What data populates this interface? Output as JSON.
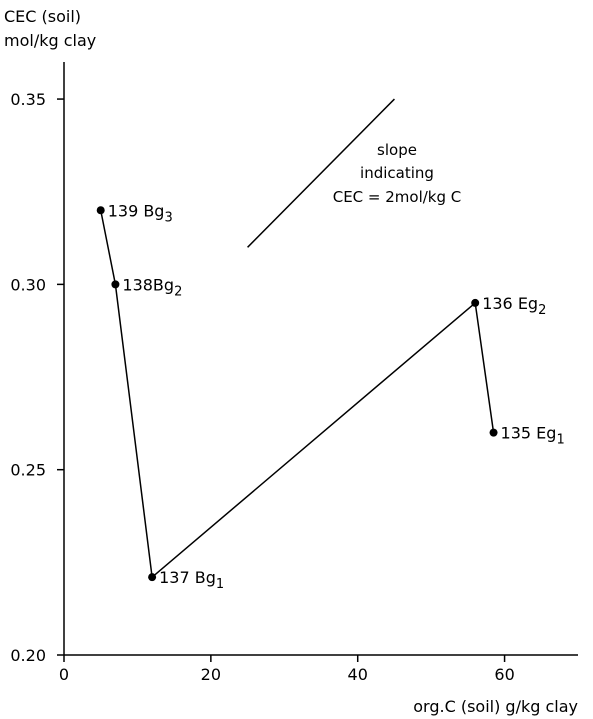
{
  "chart_data": {
    "type": "line",
    "ylabel_line1": "CEC (soil)",
    "ylabel_line2": "mol/kg clay",
    "xlabel": "org.C (soil) g/kg clay",
    "xlim": [
      0,
      70
    ],
    "ylim": [
      0.2,
      0.36
    ],
    "x_ticks": [
      0,
      20,
      40,
      60
    ],
    "x_tick_labels": [
      "0",
      "20",
      "40",
      "60"
    ],
    "y_ticks": [
      0.2,
      0.25,
      0.3,
      0.35
    ],
    "y_tick_labels": [
      "0.20",
      "0.25",
      "0.30",
      "0.35"
    ],
    "grid": false,
    "series": [
      {
        "points": [
          {
            "x": 5,
            "y": 0.32,
            "label": "139 Bg",
            "sub": "3"
          },
          {
            "x": 7,
            "y": 0.3,
            "label": "138Bg",
            "sub": "2"
          },
          {
            "x": 12,
            "y": 0.221,
            "label": "137 Bg",
            "sub": "1"
          },
          {
            "x": 56,
            "y": 0.295,
            "label": "136 Eg",
            "sub": "2"
          },
          {
            "x": 58.5,
            "y": 0.26,
            "label": "135 Eg",
            "sub": "1"
          }
        ]
      }
    ],
    "reference_line": {
      "x": [
        25,
        45
      ],
      "y": [
        0.31,
        0.35
      ],
      "label_lines": [
        "slope",
        "indicating",
        "CEC = 2mol/kg  C"
      ]
    }
  }
}
